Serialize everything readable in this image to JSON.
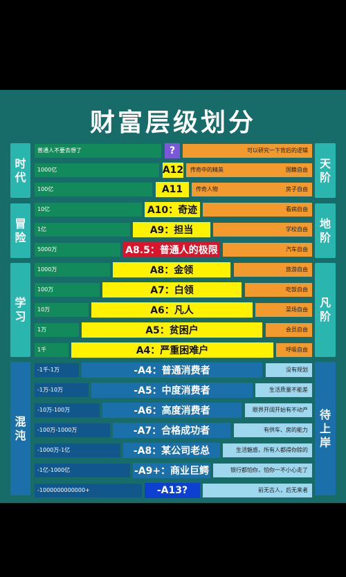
{
  "title": "财富层级划分",
  "left_categories": [
    {
      "label": "时代"
    },
    {
      "label": "冒险"
    },
    {
      "label": "学习"
    },
    {
      "label": "混沌"
    }
  ],
  "right_categories": [
    {
      "label": "天阶"
    },
    {
      "label": "地阶"
    },
    {
      "label": "凡阶"
    },
    {
      "label": "待上岸"
    }
  ],
  "levels": [
    {
      "range": "普通人不要去想了",
      "level": "?",
      "desc": "",
      "note": "可以研究一下背后的逻辑"
    },
    {
      "range": "1000亿",
      "level": "A12",
      "desc": "传奇中的精英",
      "note": "国籍自由"
    },
    {
      "range": "100亿",
      "level": "A11",
      "desc": "传奇人物",
      "note": "房子自由"
    },
    {
      "range": "10亿",
      "level": "A10：奇迹",
      "desc": "",
      "note": "看病自由"
    },
    {
      "range": "1亿",
      "level": "A9：担当",
      "desc": "",
      "note": "学校自由"
    },
    {
      "range": "5000万",
      "level": "A8.5：普通人的极限",
      "desc": "",
      "note": "汽车自由"
    },
    {
      "range": "1000万",
      "level": "A8：金领",
      "desc": "",
      "note": "旅游自由"
    },
    {
      "range": "100万",
      "level": "A7：白领",
      "desc": "",
      "note": "吃饭自由"
    },
    {
      "range": "10万",
      "level": "A6：凡人",
      "desc": "",
      "note": "菜场自由"
    },
    {
      "range": "1万",
      "level": "A5：贫困户",
      "desc": "",
      "note": "会员自由"
    },
    {
      "range": "1千",
      "level": "A4：严重困难户",
      "desc": "",
      "note": "呼吸自由"
    },
    {
      "range": "-1千-1万",
      "level": "-A4：普通消费者",
      "desc": "",
      "note": "没有规划"
    },
    {
      "range": "-1万-10万",
      "level": "-A5：中度消费者",
      "desc": "",
      "note": "生活质量不能差"
    },
    {
      "range": "-10万-100万",
      "level": "-A6：高度消费者",
      "desc": "",
      "note": "眼界开阔开始有不动产"
    },
    {
      "range": "-100万-1000万",
      "level": "-A7：合格成功者",
      "desc": "",
      "note": "有供车、房的能力"
    },
    {
      "range": "-1000万-1亿",
      "level": "-A8：某公司老总",
      "desc": "",
      "note": "生活魅惑，所有人都得你赊的"
    },
    {
      "range": "-1亿-1000亿",
      "level": "-A9+：商业巨鳄",
      "desc": "",
      "note": "银行都怕你，怕你一不小心走了"
    },
    {
      "range": "-1000000000000+",
      "level": "-A13?",
      "desc": "",
      "note": "前无古人，后无来者"
    }
  ]
}
